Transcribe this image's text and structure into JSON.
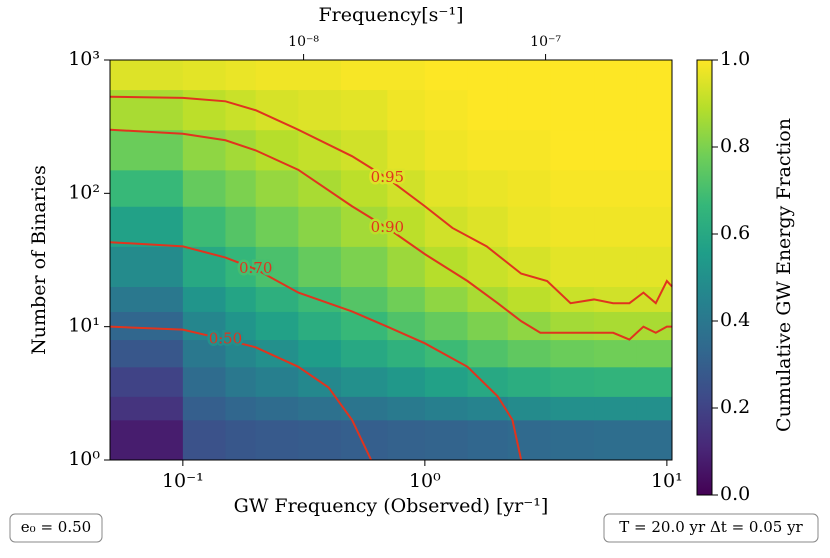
{
  "chart_data": {
    "type": "heatmap",
    "xlabel": "GW Frequency (Observed) [yr⁻¹]",
    "ylabel": "Number of Binaries",
    "x2label": "Frequency[s⁻¹]",
    "colorbar_label": "Cumulative GW Energy Fraction",
    "annotations": [
      "e₀ = 0.50",
      "T = 20.0 yr  Δt = 0.05 yr"
    ],
    "xscale": "log",
    "yscale": "log",
    "cmap": "viridis",
    "xlim": [
      0.05,
      10.5
    ],
    "ylim": [
      1,
      1000
    ],
    "xticks": [
      {
        "value": 0.1,
        "label": "10⁻¹"
      },
      {
        "value": 1,
        "label": "10⁰"
      },
      {
        "value": 10,
        "label": "10¹"
      }
    ],
    "yticks": [
      {
        "value": 1,
        "label": "10⁰"
      },
      {
        "value": 10,
        "label": "10¹"
      },
      {
        "value": 100,
        "label": "10²"
      },
      {
        "value": 1000,
        "label": "10³"
      }
    ],
    "x2lim": [
      1.585e-09,
      3.33e-07
    ],
    "x2ticks": [
      {
        "value": 1e-08,
        "label": "10⁻⁸"
      },
      {
        "value": 1e-07,
        "label": "10⁻⁷"
      }
    ],
    "clim": [
      0,
      1
    ],
    "cticks": [
      {
        "value": 0,
        "label": "0.0"
      },
      0.2,
      0.4,
      0.6,
      0.8,
      {
        "value": 1,
        "label": "1.0"
      }
    ],
    "x_edges": [
      0.05,
      0.1,
      0.15,
      0.2,
      0.3,
      0.45,
      0.7,
      1,
      1.5,
      2.2,
      3.3,
      5,
      7.5,
      10.5
    ],
    "y_edges": [
      1,
      2,
      3,
      5,
      8,
      13,
      20,
      40,
      80,
      150,
      300,
      600,
      1000
    ],
    "z": [
      [
        0.08,
        0.25,
        0.27,
        0.28,
        0.29,
        0.3,
        0.31,
        0.32,
        0.33,
        0.34,
        0.35,
        0.36,
        0.36
      ],
      [
        0.15,
        0.3,
        0.33,
        0.35,
        0.37,
        0.39,
        0.41,
        0.43,
        0.45,
        0.48,
        0.5,
        0.5,
        0.5
      ],
      [
        0.2,
        0.35,
        0.4,
        0.43,
        0.47,
        0.5,
        0.53,
        0.57,
        0.6,
        0.62,
        0.64,
        0.65,
        0.65
      ],
      [
        0.27,
        0.4,
        0.46,
        0.5,
        0.55,
        0.6,
        0.64,
        0.68,
        0.72,
        0.75,
        0.77,
        0.78,
        0.78
      ],
      [
        0.33,
        0.46,
        0.52,
        0.57,
        0.62,
        0.67,
        0.72,
        0.76,
        0.8,
        0.83,
        0.86,
        0.87,
        0.87
      ],
      [
        0.4,
        0.52,
        0.58,
        0.63,
        0.68,
        0.73,
        0.78,
        0.83,
        0.87,
        0.9,
        0.92,
        0.93,
        0.93
      ],
      [
        0.48,
        0.6,
        0.66,
        0.71,
        0.76,
        0.8,
        0.85,
        0.89,
        0.92,
        0.94,
        0.96,
        0.96,
        0.96
      ],
      [
        0.57,
        0.68,
        0.73,
        0.78,
        0.82,
        0.86,
        0.9,
        0.93,
        0.95,
        0.97,
        0.98,
        0.98,
        0.98
      ],
      [
        0.67,
        0.76,
        0.8,
        0.84,
        0.87,
        0.9,
        0.93,
        0.96,
        0.97,
        0.98,
        0.99,
        0.99,
        0.99
      ],
      [
        0.77,
        0.83,
        0.86,
        0.89,
        0.91,
        0.93,
        0.96,
        0.98,
        0.99,
        0.99,
        1,
        1,
        1
      ],
      [
        0.87,
        0.9,
        0.92,
        0.94,
        0.95,
        0.96,
        0.98,
        0.99,
        1,
        1,
        1,
        1,
        1
      ],
      [
        0.95,
        0.96,
        0.97,
        0.98,
        0.98,
        0.99,
        0.99,
        1,
        1,
        1,
        1,
        1,
        1
      ]
    ],
    "contours": [
      {
        "level": 0.95,
        "label": "0.95",
        "color": "#e0341e",
        "x": [
          0.05,
          0.1,
          0.15,
          0.2,
          0.3,
          0.5,
          0.7,
          1,
          1.3,
          1.8,
          2.5,
          3.2,
          4,
          5,
          6,
          7,
          8,
          9,
          10,
          10.5
        ],
        "y": [
          530,
          520,
          490,
          420,
          300,
          190,
          130,
          80,
          55,
          40,
          25,
          22,
          15,
          16,
          15,
          15,
          18,
          15,
          22,
          20
        ]
      },
      {
        "level": 0.9,
        "label": "0.90",
        "color": "#e0341e",
        "x": [
          0.05,
          0.1,
          0.15,
          0.2,
          0.3,
          0.5,
          0.7,
          1,
          1.5,
          2,
          2.5,
          3,
          4,
          5,
          6,
          7,
          8,
          9,
          10,
          10.5
        ],
        "y": [
          300,
          280,
          250,
          210,
          150,
          80,
          55,
          35,
          22,
          15,
          11,
          9,
          9,
          9,
          9,
          8,
          10,
          9,
          10,
          10
        ]
      },
      {
        "level": 0.7,
        "label": "0.70",
        "color": "#e0341e",
        "x": [
          0.05,
          0.1,
          0.15,
          0.2,
          0.3,
          0.5,
          0.7,
          1,
          1.5,
          2,
          2.3,
          2.5
        ],
        "y": [
          43,
          40,
          33,
          27,
          18,
          13,
          10,
          7.5,
          5,
          3,
          2,
          1
        ]
      },
      {
        "level": 0.5,
        "label": "0.50",
        "color": "#e0341e",
        "x": [
          0.05,
          0.1,
          0.15,
          0.2,
          0.3,
          0.4,
          0.5,
          0.6
        ],
        "y": [
          10,
          9.5,
          8,
          7,
          5,
          3.5,
          2,
          1
        ]
      }
    ]
  }
}
